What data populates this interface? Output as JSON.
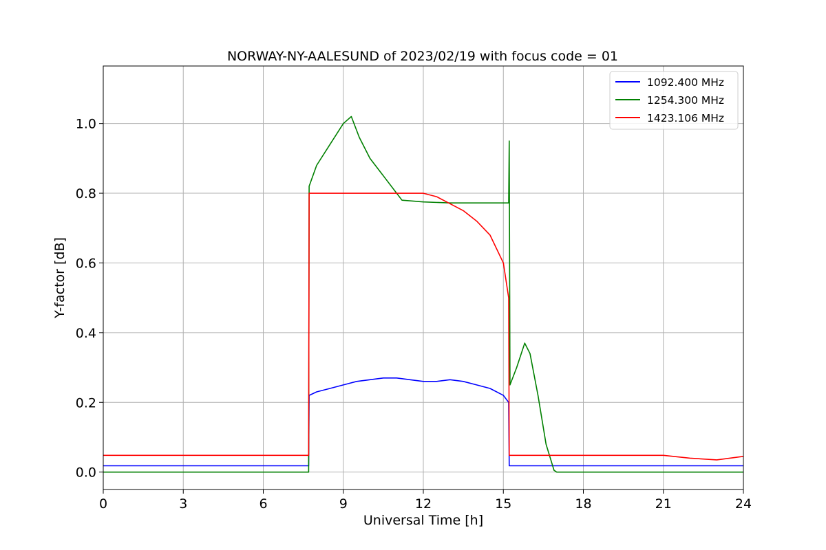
{
  "chart_data": {
    "type": "line",
    "title": "NORWAY-NY-AALESUND of 2023/02/19 with focus code = 01",
    "xlabel": "Universal Time [h]",
    "ylabel": "Y-factor [dB]",
    "xlim": [
      0,
      24
    ],
    "ylim": [
      -0.05,
      1.165
    ],
    "xticks": [
      0,
      3,
      6,
      9,
      12,
      15,
      18,
      21,
      24
    ],
    "xtick_labels": [
      "0",
      "3",
      "6",
      "9",
      "12",
      "15",
      "18",
      "21",
      "24"
    ],
    "yticks": [
      0.0,
      0.2,
      0.4,
      0.6,
      0.8,
      1.0
    ],
    "ytick_labels": [
      "0.0",
      "0.2",
      "0.4",
      "0.6",
      "0.8",
      "1.0"
    ],
    "grid": true,
    "legend_position": "top-right",
    "series": [
      {
        "name": "1092.400 MHz",
        "color": "#0000ff",
        "x": [
          0,
          7.7,
          7.72,
          8.0,
          8.5,
          9.0,
          9.5,
          10.0,
          10.5,
          11.0,
          11.5,
          12.0,
          12.5,
          13.0,
          13.5,
          14.0,
          14.5,
          15.0,
          15.2,
          15.22,
          18.0,
          21.0,
          22.0,
          23.0,
          24.0
        ],
        "y": [
          0.018,
          0.018,
          0.22,
          0.23,
          0.24,
          0.25,
          0.26,
          0.265,
          0.27,
          0.27,
          0.265,
          0.26,
          0.26,
          0.265,
          0.26,
          0.25,
          0.24,
          0.22,
          0.2,
          0.018,
          0.018,
          0.018,
          0.018,
          0.018,
          0.018
        ]
      },
      {
        "name": "1254.300 MHz",
        "color": "#008000",
        "x": [
          0,
          7.7,
          7.72,
          8.0,
          8.5,
          9.0,
          9.3,
          9.6,
          10.0,
          10.5,
          11.0,
          11.2,
          12.0,
          13.0,
          14.0,
          15.0,
          15.2,
          15.22,
          15.25,
          15.5,
          15.8,
          16.0,
          16.3,
          16.6,
          16.9,
          17.0,
          24.0
        ],
        "y": [
          0.0,
          0.0,
          0.82,
          0.88,
          0.94,
          1.0,
          1.02,
          0.96,
          0.9,
          0.85,
          0.8,
          0.78,
          0.775,
          0.772,
          0.772,
          0.772,
          0.772,
          0.95,
          0.25,
          0.3,
          0.37,
          0.34,
          0.22,
          0.08,
          0.005,
          0.0,
          0.0
        ]
      },
      {
        "name": "1423.106 MHz",
        "color": "#ff0000",
        "x": [
          0,
          7.7,
          7.72,
          8.0,
          9.0,
          10.0,
          11.0,
          12.0,
          12.5,
          13.0,
          13.5,
          14.0,
          14.5,
          15.0,
          15.2,
          15.22,
          18.0,
          21.0,
          22.0,
          23.0,
          24.0
        ],
        "y": [
          0.048,
          0.048,
          0.8,
          0.8,
          0.8,
          0.8,
          0.8,
          0.8,
          0.79,
          0.77,
          0.75,
          0.72,
          0.68,
          0.6,
          0.5,
          0.048,
          0.048,
          0.048,
          0.04,
          0.035,
          0.045
        ]
      }
    ]
  }
}
